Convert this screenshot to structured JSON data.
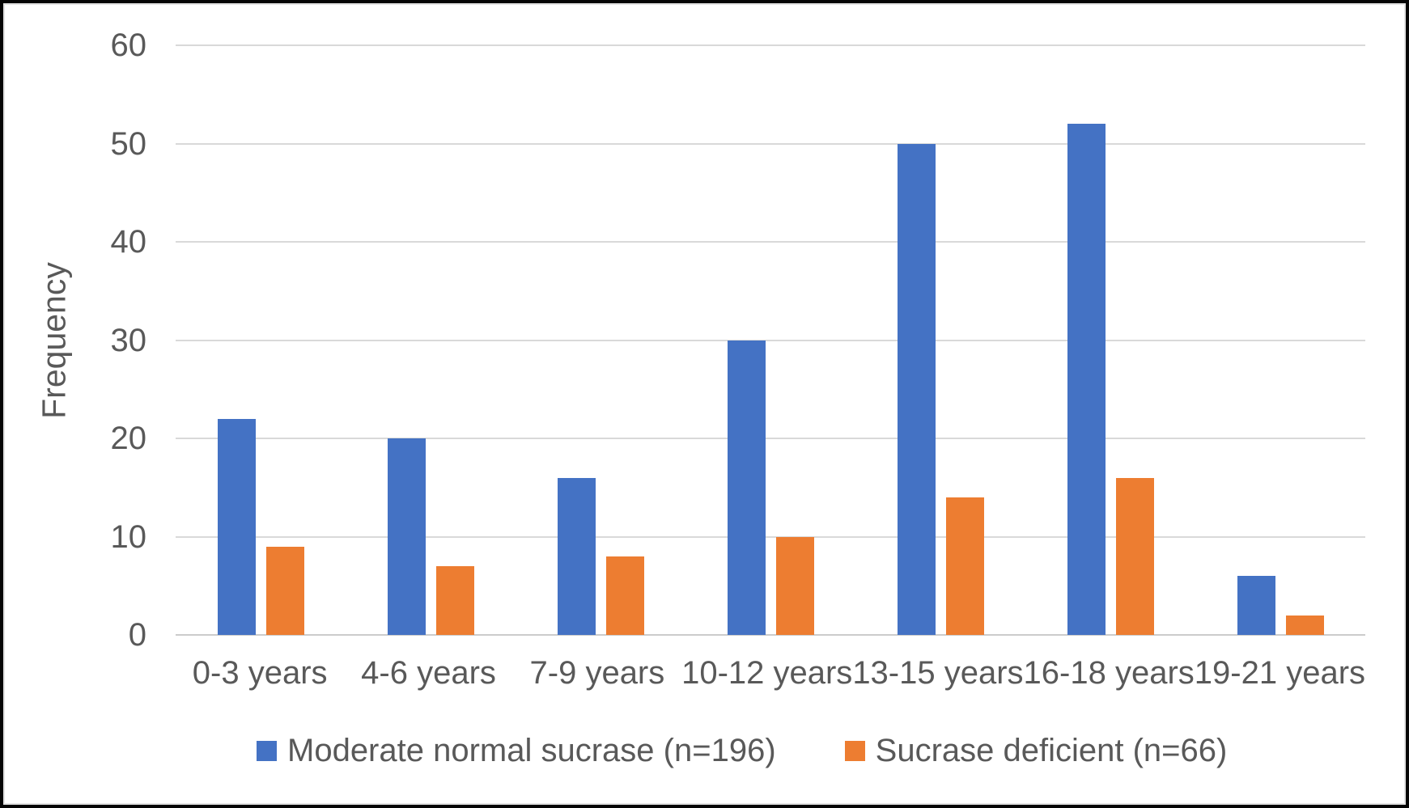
{
  "chart_data": {
    "type": "bar",
    "categories": [
      "0-3 years",
      "4-6 years",
      "7-9 years",
      "10-12 years",
      "13-15 years",
      "16-18 years",
      "19-21 years"
    ],
    "series": [
      {
        "name": "Moderate normal sucrase (n=196)",
        "color": "#4472C4",
        "values": [
          22,
          20,
          16,
          30,
          50,
          52,
          6
        ]
      },
      {
        "name": "Sucrase deficient (n=66)",
        "color": "#ED7D31",
        "values": [
          9,
          7,
          8,
          10,
          14,
          16,
          2
        ]
      }
    ],
    "title": "",
    "xlabel": "",
    "ylabel": "Frequency",
    "ylim": [
      0,
      60
    ],
    "ytick_step": 10,
    "yticks": [
      "0",
      "10",
      "20",
      "30",
      "40",
      "50",
      "60"
    ],
    "grid": true,
    "legend_position": "bottom",
    "colors": {
      "text": "#595959",
      "gridline": "#D9D9D9",
      "frame": "#050505",
      "background": "#FFFFFF"
    }
  }
}
